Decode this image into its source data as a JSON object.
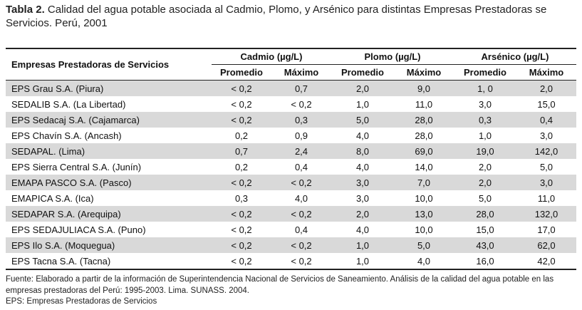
{
  "caption": {
    "label": "Tabla 2.",
    "text": "Calidad del agua potable asociada al Cadmio, Plomo, y Arsénico para distintas Empresas Prestadoras se Servicios. Perú, 2001"
  },
  "table": {
    "entity_header": "Empresas Prestadoras de Servicios",
    "groups": [
      "Cadmio (µg/L)",
      "Plomo (µg/L)",
      "Arsénico (µg/L)"
    ],
    "subheaders": [
      "Promedio",
      "Máximo",
      "Promedio",
      "Máximo",
      "Promedio",
      "Máximo"
    ],
    "rows": [
      {
        "name": "EPS Grau S.A. (Piura)",
        "values": [
          "< 0,2",
          "0,7",
          "2,0",
          "9,0",
          "1, 0",
          "2,0"
        ]
      },
      {
        "name": "SEDALIB S.A. (La Libertad)",
        "values": [
          "< 0,2",
          "< 0,2",
          "1,0",
          "11,0",
          "3,0",
          "15,0"
        ]
      },
      {
        "name": "EPS Sedacaj S.A. (Cajamarca)",
        "values": [
          "< 0,2",
          "0,3",
          "5,0",
          "28,0",
          "0,3",
          "0,4"
        ]
      },
      {
        "name": "EPS Chavín S.A. (Ancash)",
        "values": [
          "0,2",
          "0,9",
          "4,0",
          "28,0",
          "1,0",
          "3,0"
        ]
      },
      {
        "name": "SEDAPAL. (Lima)",
        "values": [
          "0,7",
          "2,4",
          "8,0",
          "69,0",
          "19,0",
          "142,0"
        ]
      },
      {
        "name": "EPS Sierra Central S.A. (Junín)",
        "values": [
          "0,2",
          "0,4",
          "4,0",
          "14,0",
          "2,0",
          "5,0"
        ]
      },
      {
        "name": "EMAPA PASCO S.A. (Pasco)",
        "values": [
          "< 0,2",
          "< 0,2",
          "3,0",
          "7,0",
          "2,0",
          "3,0"
        ]
      },
      {
        "name": "EMAPICA S.A. (Ica)",
        "values": [
          "0,3",
          "4,0",
          "3,0",
          "10,0",
          "5,0",
          "11,0"
        ]
      },
      {
        "name": "SEDAPAR S.A. (Arequipa)",
        "values": [
          "< 0,2",
          "< 0,2",
          "2,0",
          "13,0",
          "28,0",
          "132,0"
        ]
      },
      {
        "name": "EPS SEDAJULIACA S.A. (Puno)",
        "values": [
          "< 0,2",
          "0,4",
          "4,0",
          "10,0",
          "15,0",
          "17,0"
        ]
      },
      {
        "name": "EPS Ilo S.A. (Moquegua)",
        "values": [
          "< 0,2",
          "< 0,2",
          "1,0",
          "5,0",
          "43,0",
          "62,0"
        ]
      },
      {
        "name": "EPS Tacna S.A. (Tacna)",
        "values": [
          "< 0,2",
          "< 0,2",
          "1,0",
          "4,0",
          "16,0",
          "42,0"
        ]
      }
    ]
  },
  "footnote": {
    "line1": "Fuente: Elaborado a partir de la información de Superintendencia Nacional de Servicios de Saneamiento. Análisis de la calidad del agua potable en las",
    "line2": "empresas prestadoras del Perú: 1995-2003. Lima. SUNASS. 2004.",
    "line3": "EPS: Empresas Prestadoras de Servicios"
  },
  "colors": {
    "row_shade": "#d9d9d9",
    "rule": "#222222"
  }
}
